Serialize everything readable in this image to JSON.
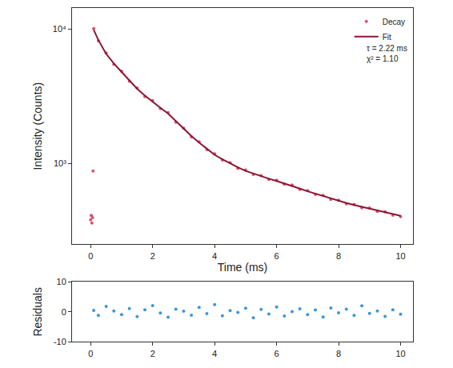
{
  "chart_data": [
    {
      "type": "scatter",
      "ylabel": "Intensity (Counts)",
      "xlabel": "Time (ms)",
      "log": "y",
      "grid": false,
      "legend": "upper right",
      "annotations": [
        "τ = 2.22 ms",
        "χ² = 1.10"
      ],
      "xlim": [
        -0.6,
        10.4
      ],
      "xticks": [
        0,
        2,
        4,
        6,
        8,
        10
      ],
      "ylim": [
        250,
        14400
      ],
      "yticks": [
        {
          "value": 1000,
          "label": "10³"
        },
        {
          "value": 10000,
          "label": "10⁴"
        }
      ],
      "series": [
        {
          "name": "Decay",
          "type": "scatter",
          "marker": "circle",
          "color": "#d9536f",
          "x": [
            0,
            0.02,
            0.04,
            0.06,
            0.08,
            0.1,
            0.25,
            0.5,
            0.75,
            1,
            1.25,
            1.5,
            1.75,
            2,
            2.25,
            2.5,
            2.75,
            3,
            3.25,
            3.5,
            3.75,
            4,
            4.25,
            4.5,
            4.75,
            5,
            5.25,
            5.5,
            5.75,
            6,
            6.25,
            6.5,
            6.75,
            7,
            7.25,
            7.5,
            7.75,
            8,
            8.25,
            8.5,
            8.75,
            9,
            9.25,
            9.5,
            9.75,
            10
          ],
          "values": [
            380,
            410,
            360,
            395,
            880,
            10100,
            8200,
            6650,
            5480,
            4870,
            4100,
            3650,
            3150,
            2940,
            2560,
            2390,
            2030,
            1830,
            1580,
            1450,
            1270,
            1180,
            1060,
            1015,
            920,
            895,
            830,
            812,
            760,
            750,
            700,
            690,
            640,
            628,
            588,
            578,
            540,
            532,
            500,
            496,
            468,
            466,
            440,
            436,
            412,
            402
          ]
        },
        {
          "name": "Fit",
          "type": "line",
          "line_style": "solid",
          "color": "#8c1630",
          "x": [
            0.1,
            0.25,
            0.5,
            0.75,
            1,
            1.25,
            1.5,
            1.75,
            2,
            2.25,
            2.5,
            2.75,
            3,
            3.25,
            3.5,
            3.75,
            4,
            4.25,
            4.5,
            4.75,
            5,
            5.25,
            5.5,
            5.75,
            6,
            6.25,
            6.5,
            6.75,
            7,
            7.25,
            7.5,
            7.75,
            8,
            8.25,
            8.5,
            8.75,
            9,
            9.25,
            9.5,
            9.75,
            10
          ],
          "values": [
            9900,
            8300,
            6560,
            5550,
            4800,
            4150,
            3600,
            3200,
            2900,
            2600,
            2350,
            2060,
            1800,
            1600,
            1430,
            1290,
            1160,
            1075,
            1000,
            935,
            880,
            840,
            800,
            770,
            740,
            710,
            680,
            650,
            620,
            595,
            570,
            547,
            525,
            507,
            490,
            475,
            460,
            445,
            430,
            418,
            407
          ]
        }
      ]
    },
    {
      "type": "scatter",
      "ylabel": "Residuals",
      "grid": false,
      "xlim": [
        -0.6,
        10.4
      ],
      "xticks": [
        0,
        2,
        4,
        6,
        8,
        10
      ],
      "ylim": [
        -10,
        10
      ],
      "yticks": [
        -10,
        0,
        10
      ],
      "series": [
        {
          "name": "Residuals",
          "type": "scatter",
          "marker": "circle",
          "color": "#3b97d8",
          "x": [
            0.1,
            0.25,
            0.5,
            0.75,
            1,
            1.25,
            1.5,
            1.75,
            2,
            2.25,
            2.5,
            2.75,
            3,
            3.25,
            3.5,
            3.75,
            4,
            4.25,
            4.5,
            4.75,
            5,
            5.25,
            5.5,
            5.75,
            6,
            6.25,
            6.5,
            6.75,
            7,
            7.25,
            7.5,
            7.75,
            8,
            8.25,
            8.5,
            8.75,
            9,
            9.25,
            9.5,
            9.75,
            10
          ],
          "values": [
            0.5,
            -1.2,
            1.8,
            0.3,
            -0.9,
            1.1,
            -1.6,
            0.7,
            2.1,
            -0.4,
            -1.8,
            0.9,
            0.2,
            -1.1,
            1.5,
            -0.6,
            2.4,
            -1.3,
            0.4,
            -0.2,
            1.2,
            -2.0,
            0.8,
            -0.7,
            1.6,
            -1.4,
            0.1,
            1.0,
            -0.9,
            0.6,
            -1.7,
            1.3,
            -0.3,
            0.9,
            -1.2,
            2.0,
            -0.5,
            0.3,
            -1.5,
            0.7,
            -0.8
          ]
        }
      ]
    }
  ]
}
